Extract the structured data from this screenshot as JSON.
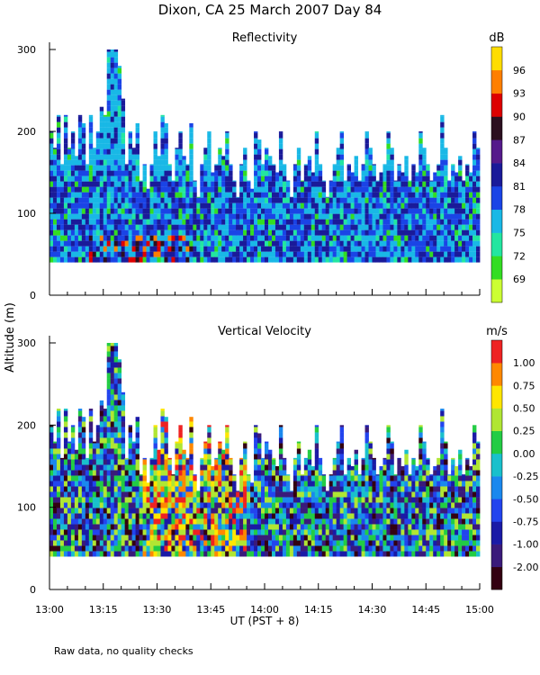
{
  "title": "Dixon, CA 25 March 2007  Day  84",
  "ylabel": "Altitude (m)",
  "xlabel": "UT  (PST + 8)",
  "footnote": "Raw data, no quality checks",
  "x_ticks": [
    "13:00",
    "13:15",
    "13:30",
    "13:45",
    "14:00",
    "14:15",
    "14:30",
    "14:45",
    "15:00"
  ],
  "chart_data": [
    {
      "type": "heatmap",
      "title": "Reflectivity",
      "unit": "dB",
      "xlim": [
        "13:00",
        "15:00"
      ],
      "ylim": [
        0,
        300
      ],
      "y_ticks": [
        0,
        100,
        200,
        300
      ],
      "colorbar_levels": [
        69,
        72,
        75,
        78,
        81,
        84,
        87,
        90,
        93,
        96
      ],
      "colorbar_labels": [
        "96",
        "93",
        "90",
        "87",
        "84",
        "81",
        "78",
        "75",
        "72",
        "69"
      ],
      "colors": [
        "#ccff33",
        "#33dd22",
        "#22e6a0",
        "#19b8e6",
        "#1a44e6",
        "#1a1a99",
        "#551a8b",
        "#2b0f1f",
        "#dd0000",
        "#ff7f00",
        "#ffdd00"
      ],
      "data_floor_m": 40,
      "column_tops_m": [
        200,
        180,
        220,
        160,
        220,
        180,
        200,
        170,
        220,
        210,
        160,
        220,
        180,
        200,
        230,
        220,
        300,
        300,
        300,
        280,
        240,
        160,
        200,
        180,
        210,
        140,
        160,
        130,
        160,
        200,
        170,
        220,
        210,
        160,
        140,
        180,
        200,
        170,
        160,
        210,
        140,
        120,
        160,
        180,
        200,
        150,
        160,
        180,
        170,
        200,
        160,
        140,
        120,
        160,
        180,
        140,
        130,
        200,
        190,
        160,
        180,
        170,
        160,
        150,
        200,
        160,
        140,
        120,
        160,
        180,
        140,
        160,
        170,
        150,
        200,
        160,
        140,
        120,
        140,
        160,
        180,
        200,
        140,
        160,
        150,
        170,
        140,
        160,
        200,
        180,
        160,
        140,
        150,
        160,
        200,
        180,
        140,
        160,
        150,
        170,
        140,
        160,
        150,
        200,
        180,
        160,
        140,
        150,
        160,
        220,
        180,
        140,
        160,
        150,
        170,
        140,
        160,
        150,
        200,
        180
      ],
      "note": "Radar return altitude/time field; reflectivity mostly 78-87 dB, peaks 90-93 dB near 50 m around 13:10-13:30"
    },
    {
      "type": "heatmap",
      "title": "Vertical Velocity",
      "unit": "m/s",
      "xlim": [
        "13:00",
        "15:00"
      ],
      "ylim": [
        0,
        300
      ],
      "y_ticks": [
        0,
        100,
        200,
        300
      ],
      "colorbar_levels": [
        -2.0,
        -1.0,
        -0.75,
        -0.5,
        -0.25,
        0.0,
        0.25,
        0.5,
        0.75,
        1.0
      ],
      "colorbar_labels": [
        "1.00",
        "0.75",
        "0.50",
        "0.25",
        "0.00",
        "-0.25",
        "-0.50",
        "-0.75",
        "-1.00",
        "-2.00"
      ],
      "colors": [
        "#330011",
        "#3a1a7a",
        "#1a1aa6",
        "#2244ee",
        "#1a88ee",
        "#19c0cc",
        "#22cc44",
        "#b0e633",
        "#ffe600",
        "#ff8800",
        "#ee2222"
      ],
      "data_floor_m": 40,
      "column_tops_m": [
        200,
        180,
        220,
        160,
        220,
        180,
        200,
        170,
        220,
        210,
        160,
        220,
        180,
        200,
        230,
        220,
        300,
        300,
        300,
        280,
        240,
        160,
        200,
        180,
        210,
        140,
        160,
        130,
        160,
        200,
        170,
        220,
        210,
        160,
        140,
        180,
        200,
        170,
        160,
        210,
        140,
        120,
        160,
        180,
        200,
        150,
        160,
        180,
        170,
        200,
        160,
        140,
        120,
        160,
        180,
        140,
        130,
        200,
        190,
        160,
        180,
        170,
        160,
        150,
        200,
        160,
        140,
        120,
        160,
        180,
        140,
        160,
        170,
        150,
        200,
        160,
        140,
        120,
        140,
        160,
        180,
        200,
        140,
        160,
        150,
        170,
        140,
        160,
        200,
        180,
        160,
        140,
        150,
        160,
        200,
        180,
        140,
        160,
        150,
        170,
        140,
        160,
        150,
        200,
        180,
        160,
        140,
        150,
        160,
        220,
        180,
        140,
        160,
        150,
        170,
        140,
        160,
        150,
        200,
        180
      ],
      "note": "Mostly -0.5 to +0.5 m/s; updrafts of 0.5-1.0 m/s between 13:30 and 13:55"
    }
  ]
}
